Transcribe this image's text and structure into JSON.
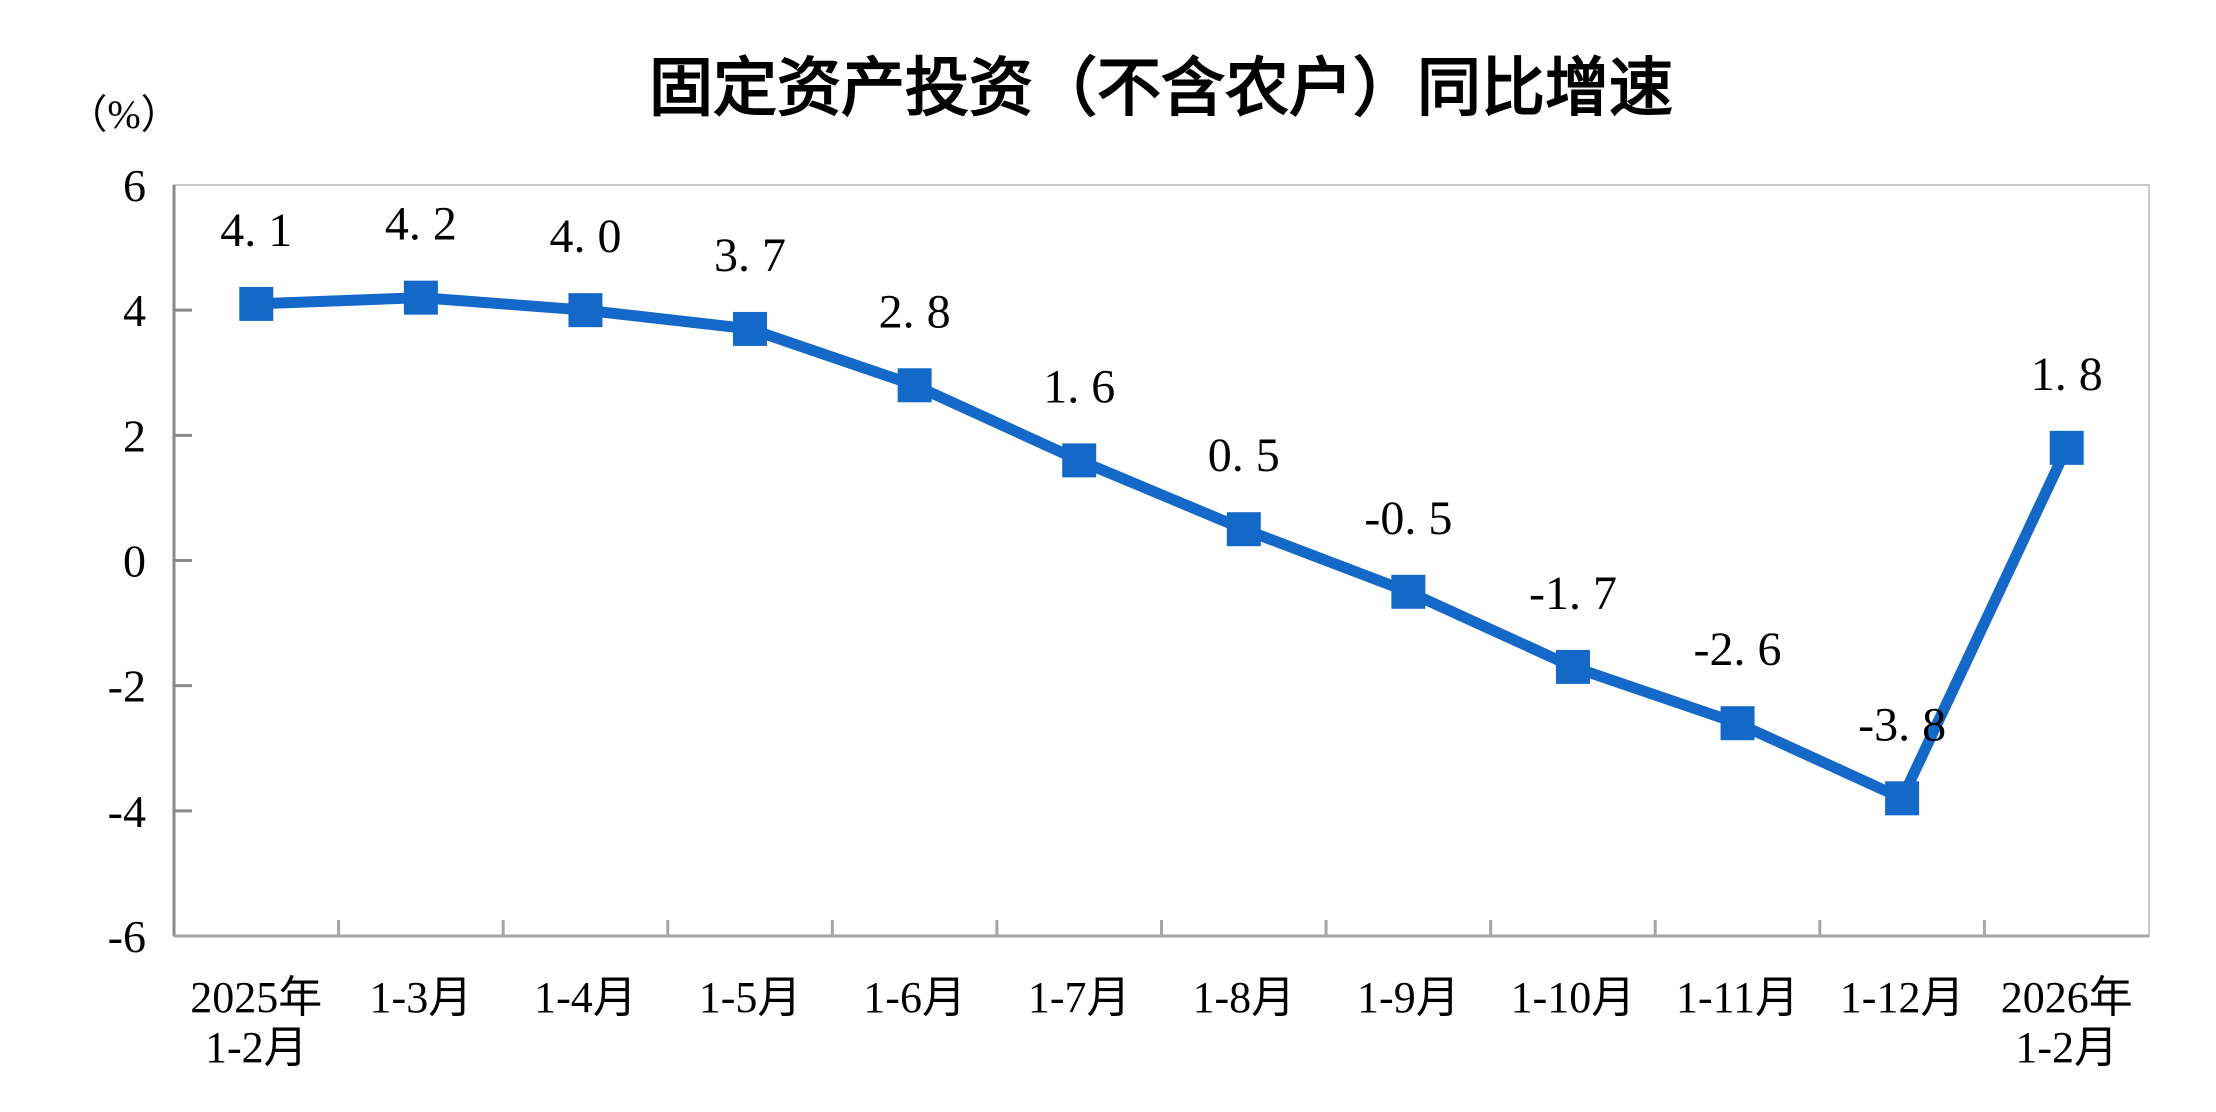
{
  "chart_data": {
    "type": "line",
    "title": "固定资产投资（不含农户）同比增速",
    "ylabel": "（%）",
    "xlabel": "",
    "categories": [
      [
        "2025年",
        "1-2月"
      ],
      [
        "1-3月"
      ],
      [
        "1-4月"
      ],
      [
        "1-5月"
      ],
      [
        "1-6月"
      ],
      [
        "1-7月"
      ],
      [
        "1-8月"
      ],
      [
        "1-9月"
      ],
      [
        "1-10月"
      ],
      [
        "1-11月"
      ],
      [
        "1-12月"
      ],
      [
        "2026年",
        "1-2月"
      ]
    ],
    "values": [
      4.1,
      4.2,
      4.0,
      3.7,
      2.8,
      1.6,
      0.5,
      -0.5,
      -1.7,
      -2.6,
      -3.8,
      1.8
    ],
    "point_labels": [
      "4. 1",
      "4. 2",
      "4. 0",
      "3. 7",
      "2. 8",
      "1. 6",
      "0. 5",
      "-0. 5",
      "-1. 7",
      "-2. 6",
      "-3. 8",
      "1. 8"
    ],
    "y_ticks": [
      6,
      4,
      2,
      0,
      -2,
      -4,
      -6
    ],
    "ylim": [
      -6,
      6
    ],
    "grid": false,
    "legend": "none",
    "marker": "square",
    "label_position": "above",
    "line_color": "#1469C8",
    "marker_color": "#1469C8",
    "text_color": "#000000",
    "border_color": "#c9c9c9",
    "y_axis_color": "#8a8a8a",
    "x_axis_color": "#a6a6a6"
  }
}
